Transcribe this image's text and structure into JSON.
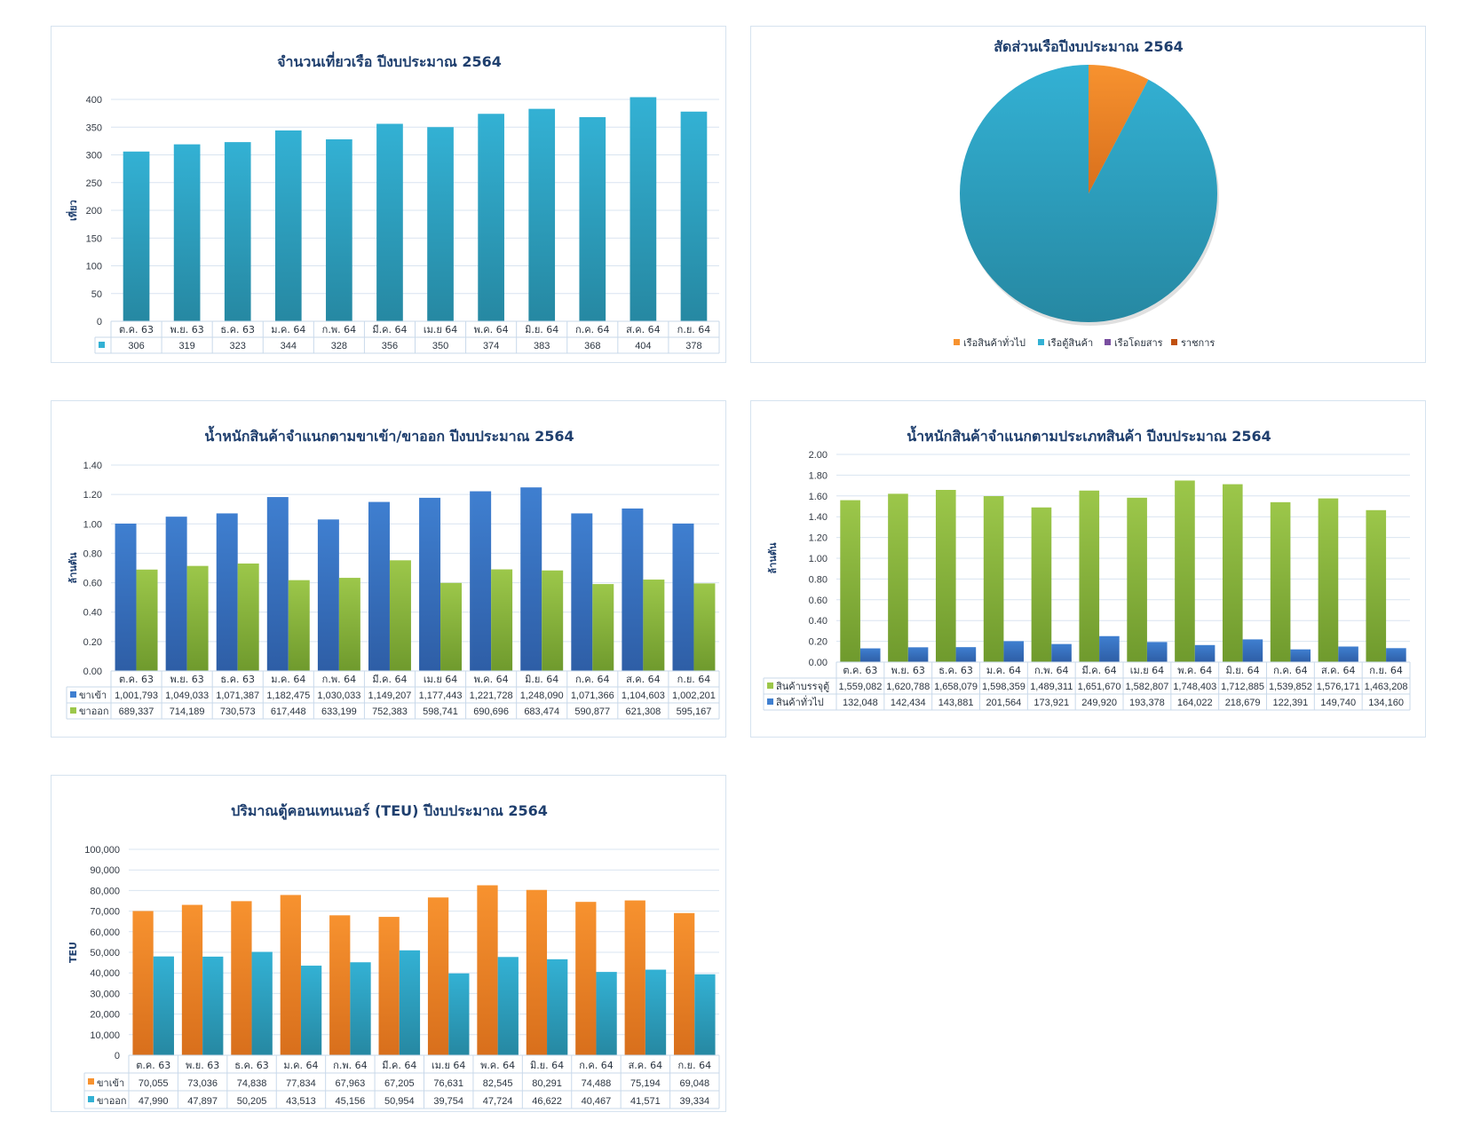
{
  "colors": {
    "teal": "#33b1d4",
    "teal_dark": "#2688a2",
    "blue": "#3f7fd0",
    "blue_dark": "#2e5ea6",
    "green": "#9cc74a",
    "green_dark": "#6f9a2d",
    "orange": "#f7922f",
    "orange_dark": "#d86f1c",
    "purple": "#7a4fa0",
    "rust": "#c0500f",
    "grid": "#d9e4f0",
    "title": "#1f3f6e"
  },
  "chart_data": [
    {
      "id": "trips",
      "type": "bar",
      "title": "จำนวนเที่ยวเรือ ปีงบประมาณ 2564",
      "ylabel": "เที่ยว",
      "xlabel": "",
      "ylim": [
        0,
        400
      ],
      "yticks": [
        "0",
        "50",
        "100",
        "150",
        "200",
        "250",
        "300",
        "350",
        "400"
      ],
      "ytick_values": [
        0,
        50,
        100,
        150,
        200,
        250,
        300,
        350,
        400
      ],
      "grid": true,
      "categories": [
        "ต.ค. 63",
        "พ.ย. 63",
        "ธ.ค. 63",
        "ม.ค. 64",
        "ก.พ. 64",
        "มี.ค. 64",
        "เม.ย 64",
        "พ.ค. 64",
        "มิ.ย. 64",
        "ก.ค. 64",
        "ส.ค. 64",
        "ก.ย. 64"
      ],
      "series": [
        {
          "name": "",
          "color": "teal",
          "values": [
            306,
            319,
            323,
            344,
            328,
            356,
            350,
            374,
            383,
            368,
            404,
            378
          ],
          "labels": [
            "306",
            "319",
            "323",
            "344",
            "328",
            "356",
            "350",
            "374",
            "383",
            "368",
            "404",
            "378"
          ]
        }
      ],
      "data_table": true
    },
    {
      "id": "ship_share",
      "type": "pie",
      "title": "สัดส่วนเรือปีงบประมาณ 2564",
      "legend_position": "bottom",
      "slices": [
        {
          "label": "เรือสินค้าทั่วไป",
          "value": 7.7,
          "color": "orange"
        },
        {
          "label": "เรือตู้สินค้า",
          "value": 92.3,
          "color": "teal"
        },
        {
          "label": "เรือโดยสาร",
          "value": 0,
          "color": "purple"
        },
        {
          "label": "ราชการ",
          "value": 0,
          "color": "rust"
        }
      ]
    },
    {
      "id": "weight_inout",
      "type": "bar",
      "title": "น้ำหนักสินค้าจำแนกตามขาเข้า/ขาออก ปีงบประมาณ 2564",
      "ylabel": "ล้านตัน",
      "xlabel": "",
      "ylim": [
        0,
        1.4
      ],
      "yticks": [
        "0.00",
        "0.20",
        "0.40",
        "0.60",
        "0.80",
        "1.00",
        "1.20",
        "1.40"
      ],
      "ytick_values": [
        0,
        0.2,
        0.4,
        0.6,
        0.8,
        1.0,
        1.2,
        1.4
      ],
      "grid": true,
      "value_scale": 1000000,
      "categories": [
        "ต.ค. 63",
        "พ.ย. 63",
        "ธ.ค. 63",
        "ม.ค. 64",
        "ก.พ. 64",
        "มี.ค. 64",
        "เม.ย 64",
        "พ.ค. 64",
        "มิ.ย. 64",
        "ก.ค. 64",
        "ส.ค. 64",
        "ก.ย. 64"
      ],
      "series": [
        {
          "name": "ขาเข้า",
          "color": "blue",
          "values": [
            1001793,
            1049033,
            1071387,
            1182475,
            1030033,
            1149207,
            1177443,
            1221728,
            1248090,
            1071366,
            1104603,
            1002201
          ],
          "labels": [
            "1,001,793",
            "1,049,033",
            "1,071,387",
            "1,182,475",
            "1,030,033",
            "1,149,207",
            "1,177,443",
            "1,221,728",
            "1,248,090",
            "1,071,366",
            "1,104,603",
            "1,002,201"
          ]
        },
        {
          "name": "ขาออก",
          "color": "green",
          "values": [
            689337,
            714189,
            730573,
            617448,
            633199,
            752383,
            598741,
            690696,
            683474,
            590877,
            621308,
            595167
          ],
          "labels": [
            "689,337",
            "714,189",
            "730,573",
            "617,448",
            "633,199",
            "752,383",
            "598,741",
            "690,696",
            "683,474",
            "590,877",
            "621,308",
            "595,167"
          ]
        }
      ],
      "data_table": true
    },
    {
      "id": "weight_type",
      "type": "bar",
      "title": "น้ำหนักสินค้าจำแนกตามประเภทสินค้า ปีงบประมาณ 2564",
      "ylabel": "ล้านตัน",
      "xlabel": "",
      "ylim": [
        0,
        2.0
      ],
      "yticks": [
        "0.00",
        "0.20",
        "0.40",
        "0.60",
        "0.80",
        "1.00",
        "1.20",
        "1.40",
        "1.60",
        "1.80",
        "2.00"
      ],
      "ytick_values": [
        0,
        0.2,
        0.4,
        0.6,
        0.8,
        1.0,
        1.2,
        1.4,
        1.6,
        1.8,
        2.0
      ],
      "grid": true,
      "value_scale": 1000000,
      "categories": [
        "ต.ค. 63",
        "พ.ย. 63",
        "ธ.ค. 63",
        "ม.ค. 64",
        "ก.พ. 64",
        "มี.ค. 64",
        "เม.ย 64",
        "พ.ค. 64",
        "มิ.ย. 64",
        "ก.ค. 64",
        "ส.ค. 64",
        "ก.ย. 64"
      ],
      "series": [
        {
          "name": "สินค้าบรรจุตู้",
          "color": "green",
          "values": [
            1559082,
            1620788,
            1658079,
            1598359,
            1489311,
            1651670,
            1582807,
            1748403,
            1712885,
            1539852,
            1576171,
            1463208
          ],
          "labels": [
            "1,559,082",
            "1,620,788",
            "1,658,079",
            "1,598,359",
            "1,489,311",
            "1,651,670",
            "1,582,807",
            "1,748,403",
            "1,712,885",
            "1,539,852",
            "1,576,171",
            "1,463,208"
          ]
        },
        {
          "name": "สินค้าทั่วไป",
          "color": "blue",
          "values": [
            132048,
            142434,
            143881,
            201564,
            173921,
            249920,
            193378,
            164022,
            218679,
            122391,
            149740,
            134160
          ],
          "labels": [
            "132,048",
            "142,434",
            "143,881",
            "201,564",
            "173,921",
            "249,920",
            "193,378",
            "164,022",
            "218,679",
            "122,391",
            "149,740",
            "134,160"
          ]
        }
      ],
      "data_table": true
    },
    {
      "id": "teu",
      "type": "bar",
      "title": "ปริมาณตู้คอนเทนเนอร์ (TEU) ปีงบประมาณ 2564",
      "ylabel": "TEU",
      "xlabel": "",
      "ylim": [
        0,
        100000
      ],
      "yticks": [
        "0",
        "10,000",
        "20,000",
        "30,000",
        "40,000",
        "50,000",
        "60,000",
        "70,000",
        "80,000",
        "90,000",
        "100,000"
      ],
      "ytick_values": [
        0,
        10000,
        20000,
        30000,
        40000,
        50000,
        60000,
        70000,
        80000,
        90000,
        100000
      ],
      "grid": true,
      "categories": [
        "ต.ค. 63",
        "พ.ย. 63",
        "ธ.ค. 63",
        "ม.ค. 64",
        "ก.พ. 64",
        "มี.ค. 64",
        "เม.ย 64",
        "พ.ค. 64",
        "มิ.ย. 64",
        "ก.ค. 64",
        "ส.ค. 64",
        "ก.ย. 64"
      ],
      "series": [
        {
          "name": "ขาเข้า",
          "color": "orange",
          "values": [
            70055,
            73036,
            74838,
            77834,
            67963,
            67205,
            76631,
            82545,
            80291,
            74488,
            75194,
            69048
          ],
          "labels": [
            "70,055",
            "73,036",
            "74,838",
            "77,834",
            "67,963",
            "67,205",
            "76,631",
            "82,545",
            "80,291",
            "74,488",
            "75,194",
            "69,048"
          ]
        },
        {
          "name": "ขาออก",
          "color": "teal",
          "values": [
            47990,
            47897,
            50205,
            43513,
            45156,
            50954,
            39754,
            47724,
            46622,
            40467,
            41571,
            39334
          ],
          "labels": [
            "47,990",
            "47,897",
            "50,205",
            "43,513",
            "45,156",
            "50,954",
            "39,754",
            "47,724",
            "46,622",
            "40,467",
            "41,571",
            "39,334"
          ]
        }
      ],
      "data_table": true
    }
  ]
}
